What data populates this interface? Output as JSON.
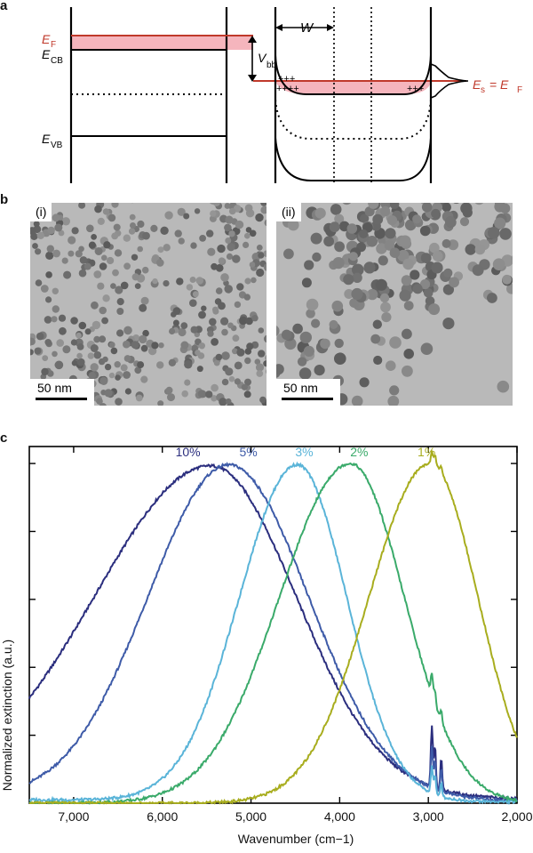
{
  "panels": {
    "a": "a",
    "b": "b",
    "c": "c"
  },
  "band_diagram": {
    "fermi_label": "E",
    "fermi_sub": "F",
    "cb_label": "E",
    "cb_sub": "CB",
    "vb_label": "E",
    "vb_sub": "VB",
    "vbb_label": "V",
    "vbb_sub": "bb",
    "width_label": "W",
    "surface_label": "E",
    "surface_sub": "s",
    "equals": " = E",
    "equals_sub": "F",
    "charges": "+++",
    "charges2": "++++",
    "accent_color": "#c0392b",
    "fill_color": "#f5b5bd"
  },
  "tem": {
    "left_tag": "(i)",
    "right_tag": "(ii)",
    "left_scale": "50 nm",
    "right_scale": "50 nm"
  },
  "chart_data": {
    "type": "line",
    "xlabel": "Wavenumber (cm−1)",
    "ylabel": "Normalized extinction (a.u.)",
    "xlim": [
      7500,
      2000
    ],
    "ylim": [
      0,
      1.05
    ],
    "x_ticks": [
      7000,
      6000,
      5000,
      4000,
      3000,
      2000
    ],
    "x_tick_labels": [
      "7,000",
      "6,000",
      "5,000",
      "4,000",
      "3,000",
      "2,000"
    ],
    "y_ticks": [
      0.2,
      0.4,
      0.6,
      0.8,
      1.0
    ],
    "series": [
      {
        "name": "10%",
        "color": "#2b2e7e",
        "peak": 5450,
        "sigma_left": 1300,
        "sigma_right": 960,
        "baseline": 0.03,
        "ch_peak": 0.18,
        "x": [
          7500,
          7000,
          6500,
          6000,
          5500,
          5400,
          5000,
          4500,
          4000,
          3500,
          3000,
          2500,
          2000
        ],
        "y": [
          0.27,
          0.47,
          0.71,
          0.92,
          1.0,
          1.0,
          0.94,
          0.74,
          0.48,
          0.26,
          0.12,
          0.06,
          0.04
        ]
      },
      {
        "name": "5%",
        "color": "#3e5ba8",
        "peak": 5250,
        "sigma_left": 910,
        "sigma_right": 900,
        "baseline": 0.015,
        "ch_peak": 0.12,
        "x": [
          7500,
          7000,
          6500,
          6000,
          5500,
          5250,
          5000,
          4500,
          4000,
          3500,
          3000,
          2500,
          2000
        ],
        "y": [
          0.07,
          0.17,
          0.38,
          0.69,
          0.96,
          1.0,
          0.97,
          0.77,
          0.47,
          0.24,
          0.1,
          0.04,
          0.02
        ]
      },
      {
        "name": "3%",
        "color": "#5ab4d8",
        "peak": 4480,
        "sigma_left": 650,
        "sigma_right": 560,
        "baseline": 0.01,
        "ch_peak": 0.08,
        "x": [
          7500,
          7000,
          6500,
          6000,
          5500,
          5000,
          4480,
          4000,
          3500,
          3000,
          2500,
          2000
        ],
        "y": [
          0.02,
          0.03,
          0.05,
          0.09,
          0.3,
          0.72,
          1.0,
          0.7,
          0.28,
          0.06,
          0.02,
          0.01
        ]
      },
      {
        "name": "2%",
        "color": "#3aaa6a",
        "peak": 3880,
        "sigma_left": 800,
        "sigma_right": 610,
        "baseline": 0.0,
        "ch_peak": 0.06,
        "x": [
          7500,
          7000,
          6500,
          6000,
          5500,
          5000,
          4500,
          3880,
          3500,
          3000,
          2500,
          2000
        ],
        "y": [
          0.02,
          0.03,
          0.05,
          0.08,
          0.14,
          0.3,
          0.68,
          1.0,
          0.82,
          0.37,
          0.09,
          0.02
        ]
      },
      {
        "name": "1%",
        "color": "#a8ad1e",
        "peak": 2980,
        "sigma_left": 690,
        "sigma_right": 540,
        "baseline": 0.0,
        "ch_peak": 0.04,
        "x": [
          7500,
          7000,
          6500,
          6000,
          5500,
          5000,
          4500,
          4000,
          3500,
          2980,
          2500,
          2000
        ],
        "y": [
          0.02,
          0.03,
          0.04,
          0.06,
          0.08,
          0.1,
          0.17,
          0.33,
          0.71,
          1.0,
          0.65,
          0.2
        ]
      }
    ],
    "grid": false,
    "legend": "inline labels above peaks"
  }
}
